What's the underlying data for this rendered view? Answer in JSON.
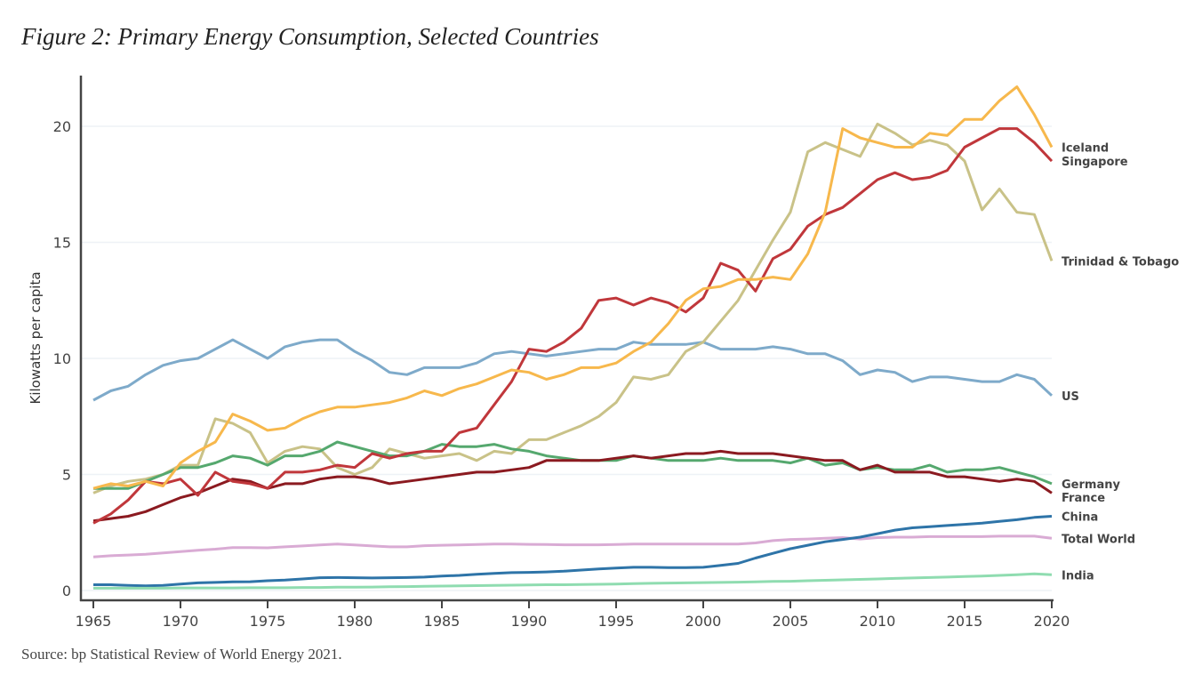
{
  "title": "Figure 2: Primary Energy Consumption, Selected Countries",
  "source": "Source: bp Statistical Review of World Energy 2021.",
  "chart_data": {
    "type": "line",
    "title": "Figure 2: Primary Energy Consumption, Selected Countries",
    "xlabel": "",
    "ylabel": "Kilowatts per capita",
    "xlim": [
      1965,
      2020
    ],
    "ylim": [
      0,
      22
    ],
    "x_ticks": [
      1965,
      1970,
      1975,
      1980,
      1985,
      1990,
      1995,
      2000,
      2005,
      2010,
      2015,
      2020
    ],
    "y_ticks": [
      0,
      5,
      10,
      15,
      20
    ],
    "grid": "horizontal",
    "legend": "direct labels at line ends (right)",
    "x_start": 1965,
    "series": [
      {
        "name": "US",
        "color": "#7eaaca",
        "values": [
          8.2,
          8.6,
          8.8,
          9.3,
          9.7,
          9.9,
          10.0,
          10.4,
          10.8,
          10.4,
          10.0,
          10.5,
          10.7,
          10.8,
          10.8,
          10.3,
          9.9,
          9.4,
          9.3,
          9.6,
          9.6,
          9.6,
          9.8,
          10.2,
          10.3,
          10.2,
          10.1,
          10.2,
          10.3,
          10.4,
          10.4,
          10.7,
          10.6,
          10.6,
          10.6,
          10.7,
          10.4,
          10.4,
          10.4,
          10.5,
          10.4,
          10.2,
          10.2,
          9.9,
          9.3,
          9.5,
          9.4,
          9.0,
          9.2,
          9.2,
          9.1,
          9.0,
          9.0,
          9.3,
          9.1,
          8.4
        ]
      },
      {
        "name": "Trinidad & Tobago",
        "color": "#c9c288",
        "values": [
          4.2,
          4.5,
          4.7,
          4.8,
          5.0,
          5.4,
          5.4,
          7.4,
          7.2,
          6.8,
          5.5,
          6.0,
          6.2,
          6.1,
          5.3,
          5.0,
          5.3,
          6.1,
          5.9,
          5.7,
          5.8,
          5.9,
          5.6,
          6.0,
          5.9,
          6.5,
          6.5,
          6.8,
          7.1,
          7.5,
          8.1,
          9.2,
          9.1,
          9.3,
          10.3,
          10.7,
          11.6,
          12.5,
          13.8,
          15.1,
          16.3,
          18.9,
          19.3,
          19.0,
          18.7,
          20.1,
          19.7,
          19.2,
          19.4,
          19.2,
          18.5,
          16.4,
          17.3,
          16.3,
          16.2,
          14.2
        ]
      },
      {
        "name": "Germany",
        "color": "#55a86e",
        "values": [
          4.4,
          4.4,
          4.4,
          4.7,
          5.0,
          5.3,
          5.3,
          5.5,
          5.8,
          5.7,
          5.4,
          5.8,
          5.8,
          6.0,
          6.4,
          6.2,
          6.0,
          5.8,
          5.8,
          6.0,
          6.3,
          6.2,
          6.2,
          6.3,
          6.1,
          6.0,
          5.8,
          5.7,
          5.6,
          5.6,
          5.6,
          5.8,
          5.7,
          5.6,
          5.6,
          5.6,
          5.7,
          5.6,
          5.6,
          5.6,
          5.5,
          5.7,
          5.4,
          5.5,
          5.2,
          5.3,
          5.2,
          5.2,
          5.4,
          5.1,
          5.2,
          5.2,
          5.3,
          5.1,
          4.9,
          4.6
        ]
      },
      {
        "name": "France",
        "color": "#8b1a20",
        "values": [
          3.0,
          3.1,
          3.2,
          3.4,
          3.7,
          4.0,
          4.2,
          4.5,
          4.8,
          4.7,
          4.4,
          4.6,
          4.6,
          4.8,
          4.9,
          4.9,
          4.8,
          4.6,
          4.7,
          4.8,
          4.9,
          5.0,
          5.1,
          5.1,
          5.2,
          5.3,
          5.6,
          5.6,
          5.6,
          5.6,
          5.7,
          5.8,
          5.7,
          5.8,
          5.9,
          5.9,
          6.0,
          5.9,
          5.9,
          5.9,
          5.8,
          5.7,
          5.6,
          5.6,
          5.2,
          5.4,
          5.1,
          5.1,
          5.1,
          4.9,
          4.9,
          4.8,
          4.7,
          4.8,
          4.7,
          4.2
        ]
      },
      {
        "name": "Singapore",
        "color": "#c0373b",
        "values": [
          2.9,
          3.3,
          3.9,
          4.7,
          4.6,
          4.8,
          4.1,
          5.1,
          4.7,
          4.6,
          4.4,
          5.1,
          5.1,
          5.2,
          5.4,
          5.3,
          5.9,
          5.7,
          5.9,
          6.0,
          6.0,
          6.8,
          7.0,
          8.0,
          9.0,
          10.4,
          10.3,
          10.7,
          11.3,
          12.5,
          12.6,
          12.3,
          12.6,
          12.4,
          12.0,
          12.6,
          14.1,
          13.8,
          12.9,
          14.3,
          14.7,
          15.7,
          16.2,
          16.5,
          17.1,
          17.7,
          18.0,
          17.7,
          17.8,
          18.1,
          19.1,
          19.5,
          19.9,
          19.9,
          19.3,
          18.5
        ]
      },
      {
        "name": "Iceland",
        "color": "#f7b84c",
        "values": [
          4.4,
          4.6,
          4.5,
          4.7,
          4.5,
          5.5,
          6.0,
          6.4,
          7.6,
          7.3,
          6.9,
          7.0,
          7.4,
          7.7,
          7.9,
          7.9,
          8.0,
          8.1,
          8.3,
          8.6,
          8.4,
          8.7,
          8.9,
          9.2,
          9.5,
          9.4,
          9.1,
          9.3,
          9.6,
          9.6,
          9.8,
          10.3,
          10.7,
          11.5,
          12.5,
          13.0,
          13.1,
          13.4,
          13.4,
          13.5,
          13.4,
          14.5,
          16.3,
          19.9,
          19.5,
          19.3,
          19.1,
          19.1,
          19.7,
          19.6,
          20.3,
          20.3,
          21.1,
          21.7,
          20.5,
          19.1
        ]
      },
      {
        "name": "Total World",
        "color": "#d9abd4",
        "values": [
          1.45,
          1.5,
          1.53,
          1.56,
          1.62,
          1.68,
          1.73,
          1.78,
          1.85,
          1.85,
          1.84,
          1.88,
          1.92,
          1.96,
          2.0,
          1.96,
          1.92,
          1.88,
          1.88,
          1.93,
          1.95,
          1.96,
          1.98,
          2.0,
          2.0,
          1.99,
          1.98,
          1.97,
          1.97,
          1.97,
          1.98,
          2.0,
          2.0,
          2.0,
          2.0,
          2.0,
          2.0,
          2.0,
          2.05,
          2.15,
          2.2,
          2.22,
          2.25,
          2.28,
          2.22,
          2.28,
          2.3,
          2.3,
          2.32,
          2.32,
          2.32,
          2.32,
          2.34,
          2.34,
          2.34,
          2.25
        ]
      },
      {
        "name": "China",
        "color": "#2e74a8",
        "values": [
          0.25,
          0.25,
          0.22,
          0.2,
          0.22,
          0.28,
          0.33,
          0.35,
          0.37,
          0.38,
          0.42,
          0.45,
          0.5,
          0.55,
          0.56,
          0.55,
          0.54,
          0.55,
          0.56,
          0.58,
          0.62,
          0.65,
          0.7,
          0.74,
          0.77,
          0.78,
          0.8,
          0.83,
          0.88,
          0.93,
          0.97,
          1.0,
          1.0,
          0.99,
          0.99,
          1.0,
          1.08,
          1.17,
          1.4,
          1.6,
          1.8,
          1.95,
          2.1,
          2.2,
          2.3,
          2.45,
          2.6,
          2.7,
          2.75,
          2.8,
          2.85,
          2.9,
          2.98,
          3.05,
          3.15,
          3.2
        ]
      },
      {
        "name": "India",
        "color": "#8fdcb0",
        "values": [
          0.1,
          0.1,
          0.1,
          0.1,
          0.1,
          0.11,
          0.11,
          0.11,
          0.11,
          0.12,
          0.12,
          0.12,
          0.13,
          0.13,
          0.14,
          0.14,
          0.15,
          0.16,
          0.17,
          0.18,
          0.19,
          0.2,
          0.21,
          0.22,
          0.23,
          0.24,
          0.25,
          0.25,
          0.26,
          0.27,
          0.28,
          0.3,
          0.31,
          0.32,
          0.33,
          0.34,
          0.35,
          0.36,
          0.37,
          0.39,
          0.4,
          0.42,
          0.44,
          0.46,
          0.48,
          0.5,
          0.52,
          0.54,
          0.56,
          0.58,
          0.6,
          0.62,
          0.65,
          0.68,
          0.72,
          0.68
        ]
      }
    ],
    "end_labels": [
      {
        "series": "Iceland",
        "text": "Iceland"
      },
      {
        "series": "Singapore",
        "text": "Singapore"
      },
      {
        "series": "Trinidad & Tobago",
        "text": "Trinidad & Tobago"
      },
      {
        "series": "US",
        "text": "US"
      },
      {
        "series": "Germany",
        "text": "Germany"
      },
      {
        "series": "France",
        "text": "France"
      },
      {
        "series": "China",
        "text": "China"
      },
      {
        "series": "Total World",
        "text": "Total World"
      },
      {
        "series": "India",
        "text": "India"
      }
    ]
  }
}
